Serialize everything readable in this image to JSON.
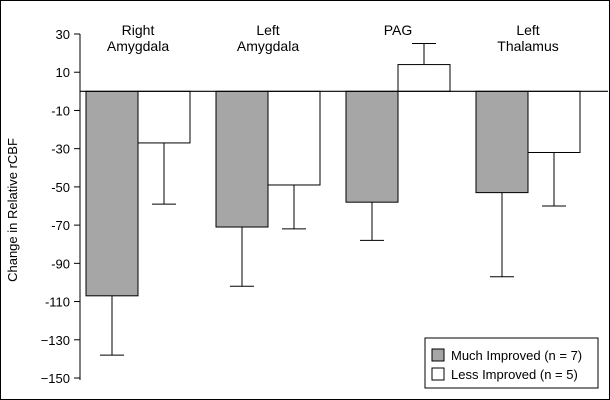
{
  "chart_data": {
    "type": "bar",
    "categories": [
      [
        "Right",
        "Amygdala"
      ],
      [
        "Left",
        "Amygdala"
      ],
      [
        "PAG"
      ],
      [
        "Left",
        "Thalamus"
      ]
    ],
    "series": [
      {
        "name": "Much Improved (n = 7)",
        "color": "#a6a6a6",
        "values": [
          -107,
          -71,
          -58,
          -53
        ],
        "error": [
          31,
          31,
          20,
          44
        ]
      },
      {
        "name": "Less Improved (n = 5)",
        "color": "#ffffff",
        "values": [
          -27,
          -49,
          14,
          -32
        ],
        "error": [
          32,
          23,
          11,
          28
        ]
      }
    ],
    "ylabel": "Change in Relative rCBF",
    "xlabel": "",
    "ylim": [
      -150,
      30
    ],
    "yticks": [
      30,
      10,
      -10,
      -30,
      -50,
      -70,
      -90,
      -110,
      -130,
      -150
    ],
    "ytick_labels": [
      "30",
      "10",
      "-10",
      "-30",
      "-50",
      "-70",
      "-90",
      "-110",
      "−130",
      "−150"
    ],
    "grid": false,
    "legend_position": "bottom-right"
  }
}
